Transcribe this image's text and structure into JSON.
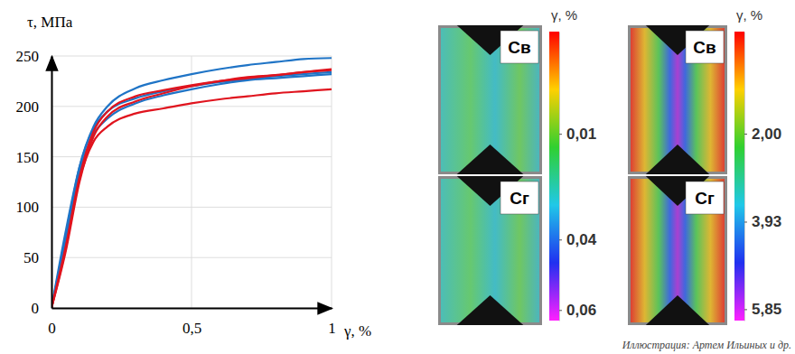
{
  "chart_data": [
    {
      "type": "line",
      "ylabel": "τ, МПа",
      "xlabel": "γ, %",
      "xlim": [
        0,
        1
      ],
      "ylim": [
        0,
        250
      ],
      "xticks": [
        0,
        {
          "value": 0.5,
          "label": "0,5"
        },
        1
      ],
      "yticks": [
        0,
        50,
        100,
        150,
        200,
        250
      ],
      "grid": true,
      "x": [
        0,
        0.05,
        0.1,
        0.15,
        0.2,
        0.3,
        0.4,
        0.5,
        0.6,
        0.7,
        0.8,
        0.9,
        1
      ],
      "series": [
        {
          "color": "#1f74c6",
          "values": [
            0,
            70,
            140,
            180,
            200,
            218,
            226,
            232,
            237,
            241,
            244,
            247,
            248
          ]
        },
        {
          "color": "#1f74c6",
          "values": [
            0,
            65,
            135,
            172,
            188,
            203,
            211,
            217,
            222,
            226,
            228,
            230,
            232
          ]
        },
        {
          "color": "#1f74c6",
          "values": [
            0,
            75,
            140,
            178,
            195,
            208,
            215,
            220,
            224,
            227,
            230,
            232,
            234
          ]
        },
        {
          "color": "#e0141e",
          "values": [
            0,
            55,
            125,
            170,
            190,
            205,
            213,
            220,
            225,
            229,
            231,
            234,
            237
          ]
        },
        {
          "color": "#e0141e",
          "values": [
            0,
            60,
            130,
            175,
            195,
            210,
            216,
            221,
            225,
            228,
            231,
            234,
            236
          ]
        },
        {
          "color": "#e0141e",
          "values": [
            0,
            58,
            128,
            165,
            180,
            193,
            198,
            203,
            207,
            210,
            213,
            215,
            217
          ]
        }
      ]
    },
    {
      "type": "heatmap",
      "panels": [
        "Св",
        "Сг"
      ],
      "colorbar": {
        "title": "γ, %",
        "range": [
          -0.019,
          0.063
        ],
        "ticks": [
          {
            "value": 0.01,
            "label": "0,01"
          },
          {
            "value": 0.04,
            "label": "0,04"
          },
          {
            "value": 0.06,
            "label": "0,06"
          }
        ]
      }
    },
    {
      "type": "heatmap",
      "panels": [
        "Св",
        "Сг"
      ],
      "colorbar": {
        "title": "γ, %",
        "range": [
          -0.24,
          6.1
        ],
        "ticks": [
          {
            "value": 2.0,
            "label": "2,00"
          },
          {
            "value": 3.93,
            "label": "3,93"
          },
          {
            "value": 5.85,
            "label": "5,85"
          }
        ]
      }
    }
  ],
  "caption": "Иллюстрация: Артем Ильиных и др."
}
